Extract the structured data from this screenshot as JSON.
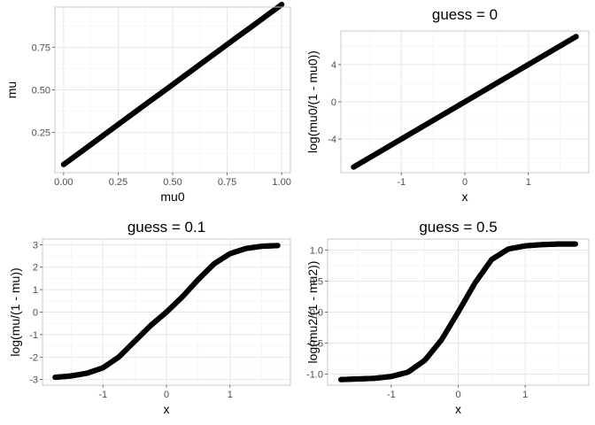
{
  "chart_data": [
    {
      "type": "scatter",
      "id": "panel-mu-vs-mu0",
      "title": "",
      "xlabel": "mu0",
      "ylabel": "mu",
      "xlim": [
        -0.04,
        1.04
      ],
      "ylim": [
        0.015,
        0.985
      ],
      "xticks": [
        0.0,
        0.25,
        0.5,
        0.75,
        1.0
      ],
      "xtick_labels": [
        "0.00",
        "0.25",
        "0.50",
        "0.75",
        "1.00"
      ],
      "yticks": [
        0.25,
        0.5,
        0.75
      ],
      "ytick_labels": [
        "0.25",
        "0.50",
        "0.75"
      ],
      "grid": true,
      "series": [
        {
          "color": "#000000",
          "x": [
            0.0,
            0.02,
            0.05,
            0.1,
            0.15,
            0.2,
            0.25,
            0.3,
            0.35,
            0.4,
            0.45,
            0.5,
            0.55,
            0.6,
            0.65,
            0.7,
            0.75,
            0.8,
            0.85,
            0.9,
            0.95,
            0.98,
            1.0
          ],
          "y": [
            0.063,
            0.081,
            0.109,
            0.156,
            0.203,
            0.25,
            0.297,
            0.344,
            0.391,
            0.438,
            0.484,
            0.531,
            0.578,
            0.625,
            0.672,
            0.719,
            0.766,
            0.813,
            0.859,
            0.906,
            0.953,
            0.981,
            1.0
          ]
        }
      ]
    },
    {
      "type": "scatter",
      "id": "panel-guess-0",
      "title": "guess = 0",
      "xlabel": "x",
      "ylabel": "log(mu0/(1 - mu0))",
      "xlim": [
        -1.95,
        1.95
      ],
      "ylim": [
        -7.6,
        7.6
      ],
      "xticks": [
        -1,
        0,
        1
      ],
      "xtick_labels": [
        "-1",
        "0",
        "1"
      ],
      "yticks": [
        -4,
        0,
        4
      ],
      "ytick_labels": [
        "-4",
        "0",
        "4"
      ],
      "grid": true,
      "series": [
        {
          "color": "#000000",
          "x": [
            -1.75,
            -1.5,
            -1.25,
            -1.0,
            -0.75,
            -0.5,
            -0.25,
            0.0,
            0.25,
            0.5,
            0.75,
            1.0,
            1.25,
            1.5,
            1.75
          ],
          "y": [
            -7.0,
            -6.0,
            -5.0,
            -4.0,
            -3.0,
            -2.0,
            -1.0,
            0.0,
            1.0,
            2.0,
            3.0,
            4.0,
            5.0,
            6.0,
            7.0
          ]
        }
      ]
    },
    {
      "type": "scatter",
      "id": "panel-guess-0.1",
      "title": "guess = 0.1",
      "xlabel": "x",
      "ylabel": "log(mu/(1 - mu))",
      "xlim": [
        -1.95,
        1.95
      ],
      "ylim": [
        -3.25,
        3.25
      ],
      "xticks": [
        -1,
        0,
        1
      ],
      "xtick_labels": [
        "-1",
        "0",
        "1"
      ],
      "yticks": [
        -3,
        -2,
        -1,
        0,
        1,
        2,
        3
      ],
      "ytick_labels": [
        "-3",
        "-2",
        "-1",
        "0",
        "1",
        "2",
        "3"
      ],
      "grid": true,
      "series": [
        {
          "color": "#000000",
          "x": [
            -1.75,
            -1.5,
            -1.25,
            -1.0,
            -0.75,
            -0.5,
            -0.25,
            0.0,
            0.25,
            0.5,
            0.75,
            1.0,
            1.25,
            1.5,
            1.75
          ],
          "y": [
            -2.9,
            -2.84,
            -2.72,
            -2.48,
            -2.0,
            -1.3,
            -0.6,
            0.0,
            0.68,
            1.45,
            2.15,
            2.6,
            2.83,
            2.93,
            2.96
          ]
        }
      ]
    },
    {
      "type": "scatter",
      "id": "panel-guess-0.5",
      "title": "guess = 0.5",
      "xlabel": "x",
      "ylabel": "log(mu2/(1 - mu2))",
      "xlim": [
        -1.95,
        1.95
      ],
      "ylim": [
        -1.18,
        1.18
      ],
      "xticks": [
        -1,
        0,
        1
      ],
      "xtick_labels": [
        "-1",
        "0",
        "1"
      ],
      "yticks": [
        -1.0,
        -0.5,
        0.0,
        0.5,
        1.0
      ],
      "ytick_labels": [
        "-1.0",
        "-0.5",
        "0.0",
        "0.5",
        "1.0"
      ],
      "grid": true,
      "series": [
        {
          "color": "#000000",
          "x": [
            -1.75,
            -1.5,
            -1.25,
            -1.0,
            -0.75,
            -0.5,
            -0.25,
            0.0,
            0.25,
            0.5,
            0.75,
            1.0,
            1.25,
            1.5,
            1.75
          ],
          "y": [
            -1.09,
            -1.08,
            -1.07,
            -1.04,
            -0.97,
            -0.78,
            -0.45,
            0.0,
            0.47,
            0.85,
            1.02,
            1.07,
            1.09,
            1.1,
            1.1
          ]
        }
      ]
    }
  ]
}
